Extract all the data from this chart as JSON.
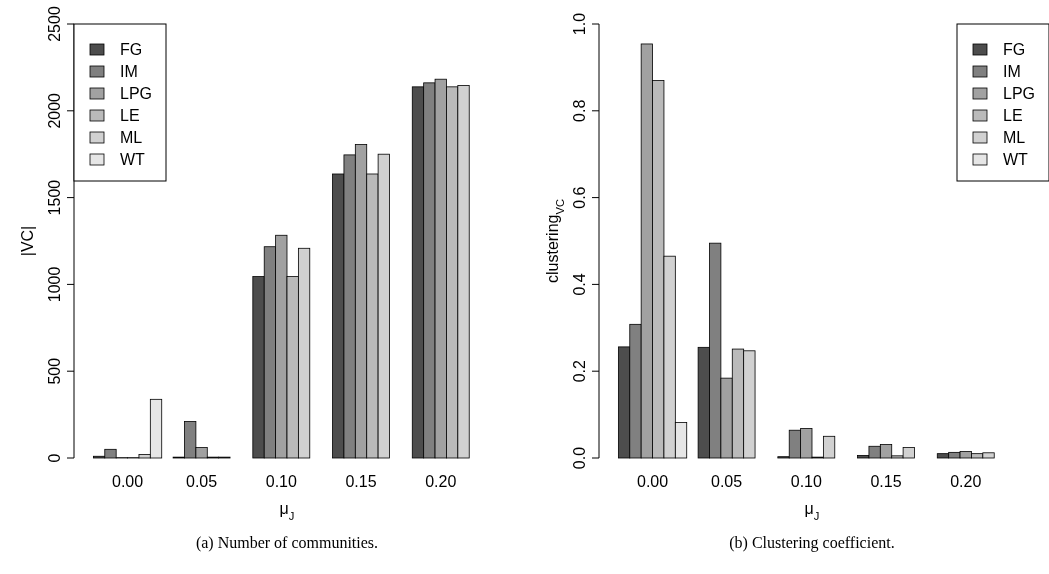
{
  "chart_data": [
    {
      "type": "bar",
      "xlabel": "μ$_{J}$",
      "ylabel": "|VC|",
      "categories": [
        "0.00",
        "0.05",
        "0.10",
        "0.15",
        "0.20"
      ],
      "ylim": [
        0,
        2500
      ],
      "yticks": [
        0,
        500,
        1000,
        1500,
        2000,
        2500
      ],
      "grid": false,
      "legend": "top left",
      "annotations": [
        "(a) Number of communities."
      ],
      "series": [
        {
          "name": "FG",
          "color": "#4d4d4d",
          "values": [
            10,
            5,
            1045,
            1636,
            2138
          ]
        },
        {
          "name": "IM",
          "color": "#808080",
          "values": [
            50,
            210,
            1217,
            1746,
            2161
          ]
        },
        {
          "name": "LPG",
          "color": "#a1a1a1",
          "values": [
            2,
            60,
            1283,
            1806,
            2182
          ]
        },
        {
          "name": "LE",
          "color": "#bababa",
          "values": [
            2,
            5,
            1045,
            1636,
            2138
          ]
        },
        {
          "name": "ML",
          "color": "#d1d1d1",
          "values": [
            20,
            5,
            1208,
            1750,
            2146
          ]
        },
        {
          "name": "WT",
          "color": "#e6e6e6",
          "values": [
            338,
            null,
            null,
            null,
            null
          ]
        }
      ]
    },
    {
      "type": "bar",
      "xlabel": "μ$_{J}$",
      "ylabel": "clustering$_{VC}$",
      "categories": [
        "0.00",
        "0.05",
        "0.10",
        "0.15",
        "0.20"
      ],
      "ylim": [
        0,
        1
      ],
      "yticks": [
        {
          "value": 0,
          "label": "0.0"
        },
        0.2,
        0.4,
        0.6,
        0.8,
        {
          "value": 1,
          "label": "1.0"
        }
      ],
      "grid": false,
      "legend": "top right",
      "annotations": [
        "(b) Clustering coefficient."
      ],
      "series": [
        {
          "name": "FG",
          "color": "#4d4d4d",
          "values": [
            0.256,
            0.255,
            0.003,
            0.006,
            0.01
          ]
        },
        {
          "name": "IM",
          "color": "#808080",
          "values": [
            0.308,
            0.495,
            0.064,
            0.027,
            0.013
          ]
        },
        {
          "name": "LPG",
          "color": "#a1a1a1",
          "values": [
            0.954,
            0.184,
            0.068,
            0.031,
            0.015
          ]
        },
        {
          "name": "LE",
          "color": "#bababa",
          "values": [
            0.87,
            0.251,
            0.002,
            0.005,
            0.01
          ]
        },
        {
          "name": "ML",
          "color": "#d1d1d1",
          "values": [
            0.465,
            0.247,
            0.05,
            0.024,
            0.012
          ]
        },
        {
          "name": "WT",
          "color": "#e6e6e6",
          "values": [
            0.082,
            null,
            null,
            null,
            null
          ]
        }
      ]
    }
  ]
}
